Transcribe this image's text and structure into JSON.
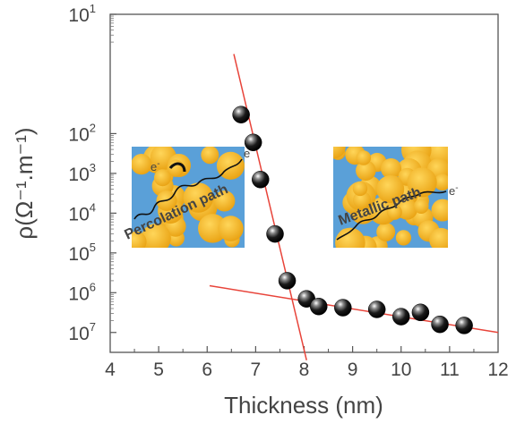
{
  "chart_data": {
    "type": "scatter",
    "xlabel": "Thickness (nm)",
    "ylabel": "ρ(Ω⁻¹.m⁻¹)",
    "xlim": [
      4,
      12
    ],
    "ylim_exponent": [
      -7.5,
      1
    ],
    "x_ticks": [
      "4",
      "5",
      "6",
      "7",
      "8",
      "9",
      "10",
      "11",
      "12"
    ],
    "y_tick_exponents": [
      1,
      2,
      3,
      4,
      5,
      6,
      7
    ],
    "y_tick_base": "10",
    "y_scale": "log",
    "grid": false,
    "legend": "none",
    "points": [
      {
        "x": 6.7,
        "y": 0.03
      },
      {
        "x": 6.95,
        "y": 0.006
      },
      {
        "x": 7.1,
        "y": 0.0007
      },
      {
        "x": 7.4,
        "y": 3e-05
      },
      {
        "x": 7.65,
        "y": 2e-06
      },
      {
        "x": 8.05,
        "y": 7e-07
      },
      {
        "x": 8.3,
        "y": 4.5e-07
      },
      {
        "x": 8.8,
        "y": 4.2e-07
      },
      {
        "x": 9.5,
        "y": 3.8e-07
      },
      {
        "x": 10.0,
        "y": 2.5e-07
      },
      {
        "x": 10.4,
        "y": 3.2e-07
      },
      {
        "x": 10.8,
        "y": 1.6e-07
      },
      {
        "x": 11.3,
        "y": 1.5e-07
      }
    ],
    "fit_lines": [
      {
        "from": [
          6.55,
          1.0
        ],
        "to": [
          8.05,
          2e-08
        ]
      },
      {
        "from": [
          6.05,
          1.5e-06
        ],
        "to": [
          12,
          1e-07
        ]
      }
    ],
    "colors": {
      "fit_line": "#e8443a",
      "marker": "#1a1a1a",
      "inset_bg": "#5aa0d8",
      "particle": "#f3b21b"
    }
  },
  "insets": {
    "percolation": {
      "label": "Percolation path",
      "electron": "e",
      "electron_sup": "-"
    },
    "metallic": {
      "label": "Metallic path",
      "electron": "e",
      "electron_sup": "-"
    }
  }
}
